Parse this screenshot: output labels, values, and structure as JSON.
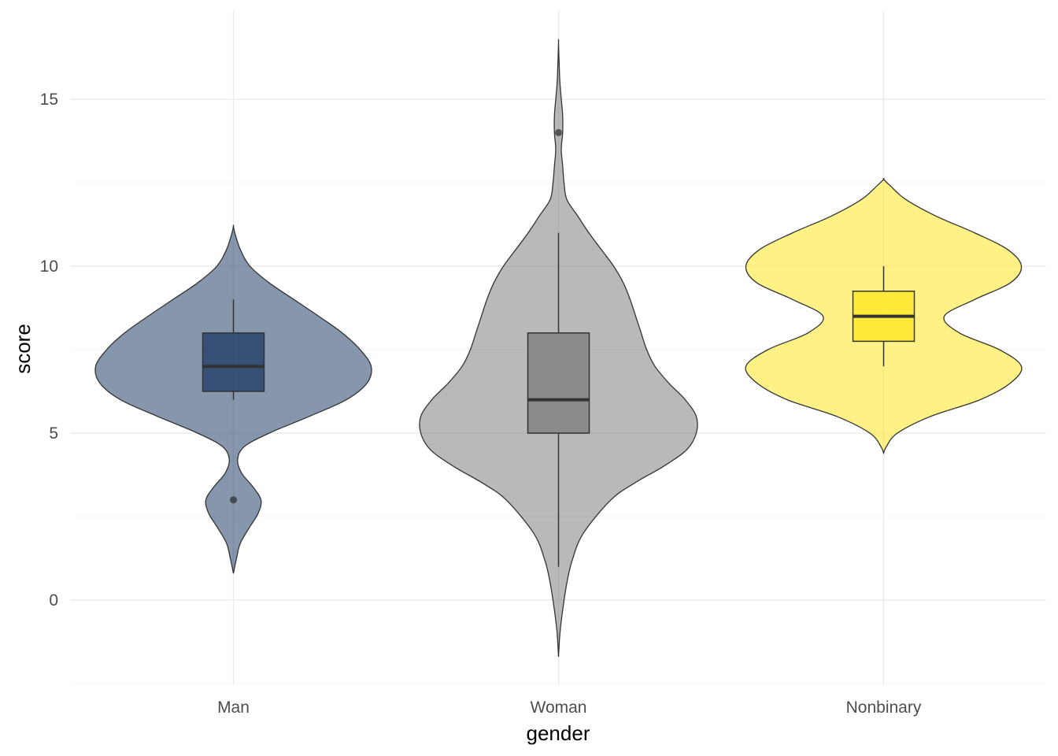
{
  "chart_data": {
    "type": "violin",
    "xlabel": "gender",
    "ylabel": "score",
    "categories": [
      "Man",
      "Woman",
      "Nonbinary"
    ],
    "ylim": [
      -2.5,
      17.2
    ],
    "yticks": [
      0,
      5,
      10,
      15
    ],
    "grid": true,
    "legend": "none",
    "groups": [
      {
        "name": "Man",
        "color": "#233f68",
        "violin": {
          "y": [
            0.8,
            1.2,
            1.7,
            2.2,
            2.6,
            3.0,
            3.4,
            3.8,
            4.2,
            4.6,
            5.0,
            5.5,
            6.0,
            6.5,
            7.0,
            7.5,
            8.0,
            8.5,
            9.0,
            9.5,
            10.0,
            10.5,
            11.0,
            11.2
          ],
          "width": [
            0.0,
            0.02,
            0.05,
            0.12,
            0.18,
            0.2,
            0.14,
            0.06,
            0.03,
            0.08,
            0.26,
            0.55,
            0.82,
            0.97,
            1.0,
            0.92,
            0.79,
            0.62,
            0.44,
            0.26,
            0.12,
            0.05,
            0.01,
            0.0
          ]
        },
        "box": {
          "q1": 6.25,
          "median": 7.0,
          "q3": 8.0,
          "whisker_low": 6.0,
          "whisker_high": 9.0
        },
        "outliers": [
          3.0
        ]
      },
      {
        "name": "Woman",
        "color": "#7f7f7f",
        "violin": {
          "y": [
            -1.7,
            -1.0,
            -0.3,
            0.5,
            1.2,
            2.0,
            3.0,
            3.5,
            4.0,
            4.5,
            5.0,
            5.5,
            6.0,
            6.5,
            7.0,
            7.5,
            8.0,
            8.5,
            9.0,
            9.5,
            10.0,
            10.5,
            11.0,
            11.5,
            12.0,
            12.5,
            13.0,
            13.5,
            14.0,
            14.5,
            15.0,
            15.5,
            16.0,
            16.7
          ],
          "width": [
            0.0,
            0.01,
            0.03,
            0.06,
            0.1,
            0.18,
            0.38,
            0.55,
            0.76,
            0.93,
            1.0,
            1.0,
            0.92,
            0.8,
            0.7,
            0.64,
            0.6,
            0.56,
            0.52,
            0.47,
            0.4,
            0.31,
            0.22,
            0.14,
            0.06,
            0.04,
            0.03,
            0.02,
            0.03,
            0.03,
            0.02,
            0.01,
            0.005,
            0.0
          ]
        },
        "box": {
          "q1": 5.0,
          "median": 6.0,
          "q3": 8.0,
          "whisker_low": 1.0,
          "whisker_high": 11.0
        },
        "outliers": [
          14.0
        ]
      },
      {
        "name": "Nonbinary",
        "color": "#fde725",
        "violin": {
          "y": [
            4.4,
            4.6,
            5.0,
            5.5,
            6.0,
            6.5,
            7.0,
            7.5,
            8.0,
            8.5,
            9.0,
            9.5,
            10.0,
            10.5,
            11.0,
            11.5,
            12.0,
            12.4,
            12.6
          ],
          "width": [
            0.0,
            0.02,
            0.1,
            0.34,
            0.7,
            0.92,
            1.0,
            0.84,
            0.55,
            0.44,
            0.66,
            0.92,
            1.0,
            0.9,
            0.66,
            0.38,
            0.16,
            0.05,
            0.0
          ]
        },
        "box": {
          "q1": 7.75,
          "median": 8.5,
          "q3": 9.25,
          "whisker_low": 7.0,
          "whisker_high": 10.0
        },
        "outliers": []
      }
    ]
  }
}
